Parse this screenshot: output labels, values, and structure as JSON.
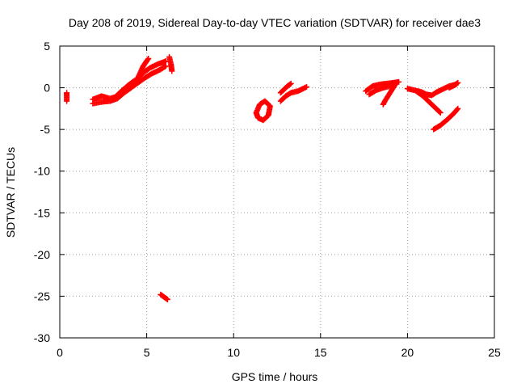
{
  "chart_data": {
    "type": "scatter",
    "title": "Day 208 of 2019, Sidereal Day-to-day VTEC variation (SDTVAR) for receiver dae3",
    "xlabel": "GPS time / hours",
    "ylabel": "SDTVAR / TECUs",
    "xlim": [
      0,
      25
    ],
    "ylim": [
      -30,
      5
    ],
    "xticks": [
      0,
      5,
      10,
      15,
      20,
      25
    ],
    "yticks": [
      -30,
      -25,
      -20,
      -15,
      -10,
      -5,
      0,
      5
    ],
    "grid": true,
    "marker": "plus",
    "color": "#ff0000",
    "segments": [
      [
        [
          0.4,
          -0.6
        ],
        [
          0.4,
          -1.6
        ]
      ],
      [
        [
          1.9,
          -1.4
        ],
        [
          2.4,
          -1.0
        ],
        [
          2.9,
          -1.3
        ],
        [
          3.2,
          -1.1
        ],
        [
          3.6,
          -0.3
        ],
        [
          4.0,
          0.4
        ],
        [
          4.4,
          1.0
        ],
        [
          4.8,
          1.8
        ],
        [
          5.2,
          2.4
        ],
        [
          5.6,
          2.8
        ],
        [
          6.0,
          3.1
        ],
        [
          6.1,
          3.2
        ]
      ],
      [
        [
          1.9,
          -1.9
        ],
        [
          2.4,
          -1.7
        ],
        [
          2.9,
          -1.6
        ],
        [
          3.3,
          -1.3
        ],
        [
          3.7,
          -0.6
        ],
        [
          4.1,
          0.0
        ],
        [
          4.5,
          0.6
        ],
        [
          4.9,
          1.2
        ],
        [
          5.3,
          1.7
        ],
        [
          5.8,
          2.2
        ],
        [
          6.1,
          2.6
        ]
      ],
      [
        [
          4.5,
          1.2
        ],
        [
          4.8,
          2.6
        ],
        [
          5.1,
          3.5
        ]
      ],
      [
        [
          6.3,
          3.7
        ],
        [
          6.4,
          2.8
        ],
        [
          6.45,
          2.0
        ]
      ],
      [
        [
          5.8,
          -24.8
        ],
        [
          6.0,
          -25.1
        ],
        [
          6.2,
          -25.4
        ]
      ],
      [
        [
          11.3,
          -3.0
        ],
        [
          11.5,
          -2.0
        ],
        [
          11.8,
          -1.6
        ],
        [
          12.1,
          -2.2
        ],
        [
          12.0,
          -3.3
        ],
        [
          11.7,
          -3.9
        ],
        [
          11.4,
          -3.6
        ],
        [
          11.3,
          -3.0
        ]
      ],
      [
        [
          12.7,
          -1.6
        ],
        [
          13.0,
          -1.0
        ],
        [
          13.3,
          -0.6
        ],
        [
          13.7,
          -0.4
        ],
        [
          14.0,
          -0.1
        ],
        [
          14.2,
          0.1
        ]
      ],
      [
        [
          12.7,
          -0.6
        ],
        [
          12.9,
          -0.2
        ],
        [
          13.1,
          0.2
        ],
        [
          13.3,
          0.5
        ]
      ],
      [
        [
          17.6,
          -0.4
        ],
        [
          18.0,
          0.2
        ],
        [
          18.4,
          0.4
        ],
        [
          18.8,
          0.5
        ],
        [
          19.2,
          0.6
        ],
        [
          19.5,
          0.7
        ]
      ],
      [
        [
          17.8,
          -0.8
        ],
        [
          18.2,
          -0.3
        ],
        [
          18.6,
          0.0
        ],
        [
          19.0,
          0.2
        ]
      ],
      [
        [
          19.3,
          0.4
        ],
        [
          19.0,
          -0.6
        ],
        [
          18.7,
          -1.6
        ],
        [
          18.6,
          -2.0
        ]
      ],
      [
        [
          20.0,
          -0.1
        ],
        [
          20.4,
          -0.3
        ],
        [
          20.8,
          -0.5
        ],
        [
          21.1,
          -0.8
        ],
        [
          21.4,
          -0.9
        ],
        [
          21.7,
          -0.5
        ],
        [
          22.0,
          -0.2
        ],
        [
          22.4,
          0.2
        ],
        [
          22.8,
          0.4
        ]
      ],
      [
        [
          20.5,
          -0.4
        ],
        [
          20.9,
          -1.0
        ],
        [
          21.3,
          -1.8
        ],
        [
          21.7,
          -2.6
        ],
        [
          21.9,
          -3.0
        ]
      ],
      [
        [
          21.5,
          -5.0
        ],
        [
          21.9,
          -4.5
        ],
        [
          22.3,
          -3.8
        ],
        [
          22.7,
          -3.0
        ],
        [
          22.9,
          -2.5
        ]
      ],
      [
        [
          22.4,
          0.0
        ],
        [
          22.7,
          0.3
        ],
        [
          22.9,
          0.6
        ]
      ]
    ]
  }
}
